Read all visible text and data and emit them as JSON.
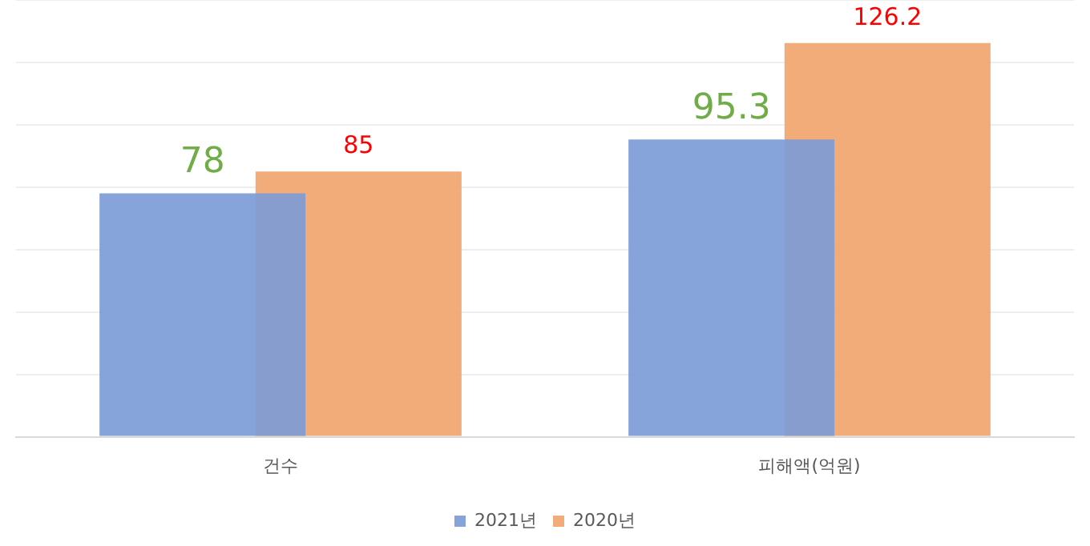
{
  "chart_data": {
    "type": "bar",
    "categories": [
      "건수",
      "피해액(억원)"
    ],
    "series": [
      {
        "name": "2021년",
        "color": "#7b9bd6",
        "values": [
          78,
          95.3
        ]
      },
      {
        "name": "2020년",
        "color": "#f0a46c",
        "values": [
          85,
          126.2
        ]
      }
    ],
    "ylim": [
      0,
      140
    ],
    "yticks": [
      {
        "value": 0,
        "label": null
      },
      {
        "value": 20,
        "label": null
      },
      {
        "value": 40,
        "label": null
      },
      {
        "value": 60,
        "label": null
      },
      {
        "value": 80,
        "label": null
      },
      {
        "value": 100,
        "label": null
      },
      {
        "value": 120,
        "label": null
      },
      {
        "value": 140,
        "label": null
      }
    ],
    "grid": "y",
    "legend": "bottom",
    "data_labels": true,
    "tick_labels": "x"
  }
}
